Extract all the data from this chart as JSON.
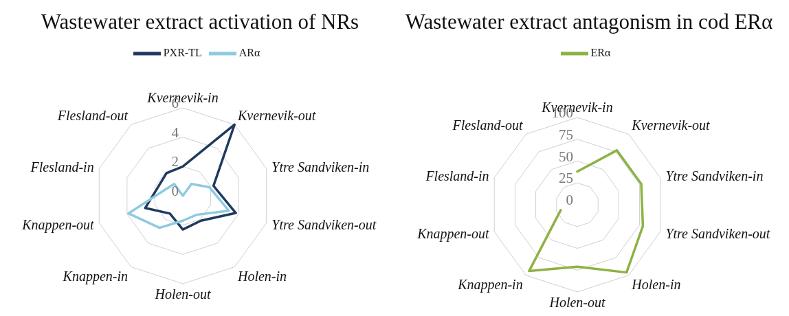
{
  "chart_data": [
    {
      "type": "radar",
      "title": "Wastewater extract activation of NRs",
      "categories": [
        "Kvernevik-in",
        "Kvernevik-out",
        "Ytre Sandviken-in",
        "Ytre Sandviken-out",
        "Holen-in",
        "Holen-out",
        "Knappen-in",
        "Knappen-out",
        "Flesland-in",
        "Flesland-out"
      ],
      "series": [
        {
          "name": "PXR-TL",
          "color": "#1f3a5f",
          "values": [
            2.0,
            6.0,
            2.2,
            3.8,
            2.1,
            2.3,
            1.5,
            2.7,
            1.8,
            1.9
          ]
        },
        {
          "name": "ARα",
          "color": "#8ecae0",
          "values": [
            0,
            1.0,
            1.9,
            3.3,
            1.6,
            1.7,
            2.7,
            3.9,
            1.3,
            1.0
          ]
        }
      ],
      "ylim": [
        0,
        6
      ],
      "yticks": [
        0,
        2,
        4,
        6
      ],
      "grid": true,
      "legend": "top"
    },
    {
      "type": "radar",
      "title": "Wastewater extract antagonism in cod ERα",
      "categories": [
        "Kvernevik-in",
        "Kvernevik-out",
        "Ytre Sandviken-in",
        "Ytre Sandviken-out",
        "Holen-in",
        "Holen-out",
        "Knappen-in",
        "Knappen-out",
        "Flesland-in",
        "Flesland-out"
      ],
      "series": [
        {
          "name": "ERα",
          "color": "#8db243",
          "values": [
            38,
            77,
            77,
            79,
            96,
            71,
            94,
            20,
            null,
            null
          ]
        }
      ],
      "ylim": [
        0,
        100
      ],
      "yticks": [
        0,
        25,
        50,
        75,
        100
      ],
      "grid": true,
      "legend": "top"
    }
  ]
}
